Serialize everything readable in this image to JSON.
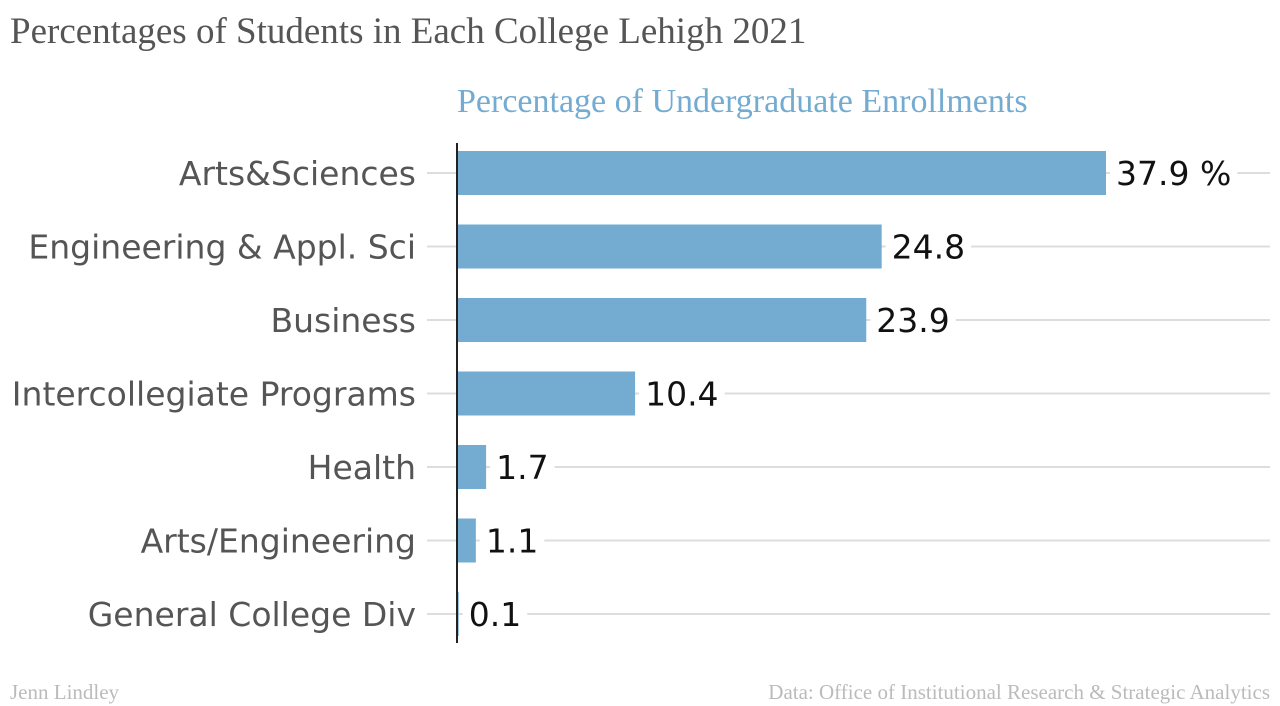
{
  "title": "Percentages of Students in Each College Lehigh 2021",
  "footer": {
    "credit": "Jenn Lindley",
    "source": "Data: Office of Institutional Research & Strategic Analytics"
  },
  "colors": {
    "bar": "#73abd1",
    "series_title": "#73abd1",
    "gridline": "#dddddd",
    "axis": "#222222"
  },
  "chart_data": {
    "type": "bar",
    "orientation": "horizontal",
    "series": [
      {
        "name": "Percentage of Undergraduate Enrollments",
        "values": [
          37.9,
          24.8,
          23.9,
          10.4,
          1.7,
          1.1,
          0.1
        ]
      }
    ],
    "categories": [
      "Arts&Sciences",
      "Engineering & Appl. Sci",
      "Business",
      "Intercollegiate Programs",
      "Health",
      "Arts/Engineering",
      "General College Div"
    ],
    "value_labels": [
      "37.9 %",
      "24.8",
      "23.9",
      "10.4",
      "1.7",
      "1.1",
      "0.1"
    ],
    "xlim": [
      0,
      38
    ],
    "grid": true,
    "legend": "none"
  }
}
